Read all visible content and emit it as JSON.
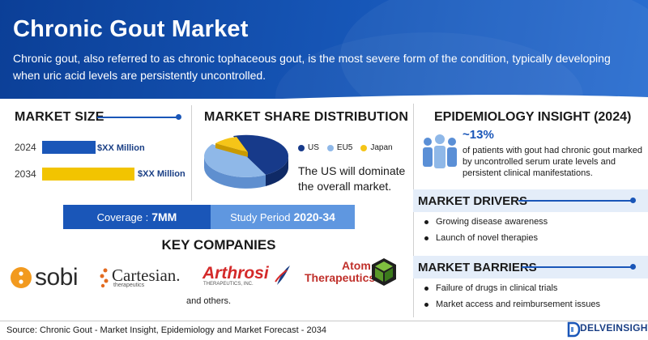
{
  "header": {
    "title": "Chronic Gout Market",
    "description": "Chronic gout, also referred to as chronic tophaceous gout, is the most severe form of the condition, typically developing when uric acid levels are persistently uncontrolled."
  },
  "market_size": {
    "title": "MARKET SIZE",
    "rows": [
      {
        "year": "2024",
        "value": "$XX Million",
        "fraction": 0.58,
        "color": "#1a56b8"
      },
      {
        "year": "2034",
        "value": "$XX Million",
        "fraction": 1.0,
        "color": "#f2c400"
      }
    ]
  },
  "market_share": {
    "title": "MARKET SHARE DISTRIBUTION",
    "legend": [
      {
        "label": "US",
        "color": "#173a8a"
      },
      {
        "label": "EU5",
        "color": "#8fb8e8"
      },
      {
        "label": "Japan",
        "color": "#f5c518"
      }
    ],
    "text": "The US will dominate the overall market."
  },
  "coverage": {
    "label": "Coverage :",
    "value": "7MM",
    "period_label": "Study Period",
    "period_value": "2020-34"
  },
  "key_companies": {
    "title": "KEY COMPANIES",
    "companies": [
      {
        "name": "sobi"
      },
      {
        "name": "Cartesian.",
        "sub": "therapeutics"
      },
      {
        "name": "Arthrosi",
        "sub": "THERAPEUTICS, INC."
      },
      {
        "name": "Atom",
        "name2": "Therapeutics"
      }
    ],
    "others": "and others."
  },
  "epidemiology": {
    "title": "EPIDEMIOLOGY INSIGHT (2024)",
    "percent": "~13%",
    "text": "of patients with gout had chronic gout marked by uncontrolled serum urate levels and persistent clinical manifestations."
  },
  "drivers": {
    "title": "MARKET DRIVERS",
    "items": [
      "Growing disease awareness",
      "Launch of novel therapies"
    ]
  },
  "barriers": {
    "title": "MARKET BARRIERS",
    "items": [
      "Failure of drugs in clinical trials",
      "Market access and reimbursement issues"
    ]
  },
  "footer": {
    "source": "Source: Chronic Gout - Market Insight, Epidemiology and Market Forecast - 2034",
    "brand": "DELVEINSIGHT"
  },
  "colors": {
    "primary": "#1a56b8",
    "accent_yellow": "#f2c400",
    "panel_bg": "#e4edf9"
  }
}
